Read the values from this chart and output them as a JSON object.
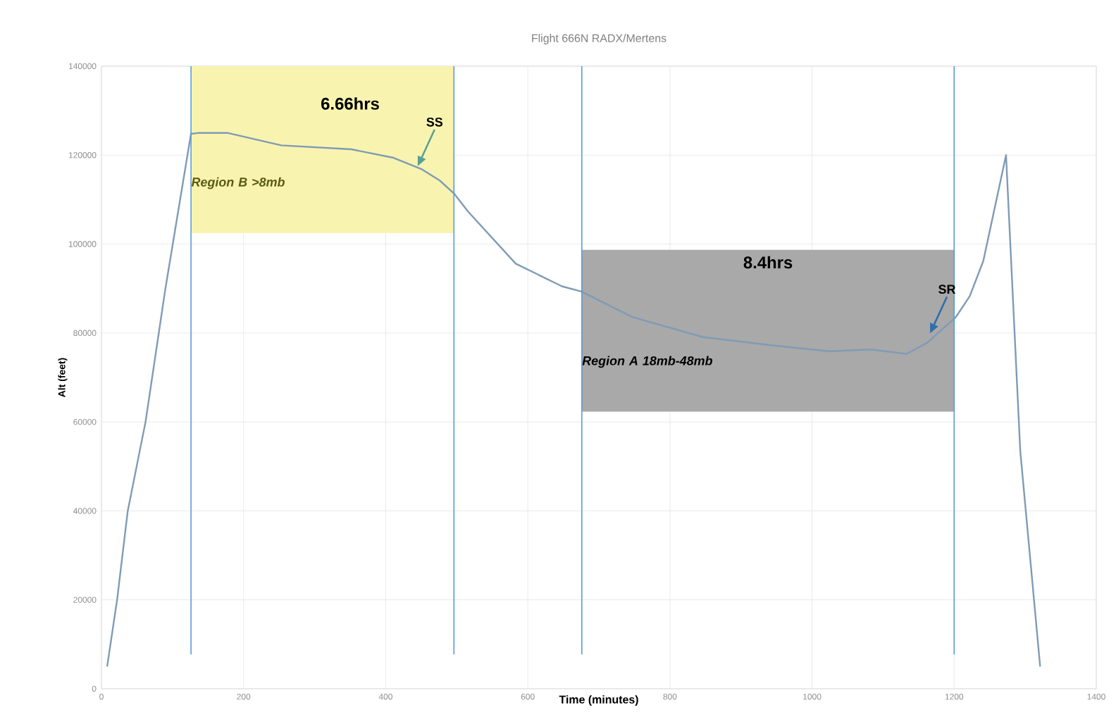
{
  "chart_data": {
    "type": "line",
    "title": "Flight 666N RADX/Mertens",
    "xlabel": "Time (minutes)",
    "ylabel": "Alt (feet)",
    "x": [
      8,
      22,
      37,
      62,
      90,
      126,
      138,
      177,
      253,
      352,
      411,
      451,
      476,
      496,
      516,
      583,
      648,
      676,
      747,
      846,
      945,
      1024,
      1083,
      1133,
      1162,
      1202,
      1222,
      1241,
      1273,
      1293,
      1321
    ],
    "series": [
      {
        "color": "#7f9bb5",
        "values": [
          5000,
          20000,
          40000,
          60000,
          90000,
          124800,
          125000,
          125000,
          122200,
          121300,
          119400,
          116800,
          114300,
          111400,
          107300,
          95600,
          90500,
          89300,
          83600,
          79100,
          77200,
          75900,
          76300,
          75300,
          77800,
          83500,
          88300,
          96200,
          120000,
          53500,
          5000
        ]
      }
    ],
    "xlim": [
      0,
      1400
    ],
    "xticks": [
      0,
      200,
      400,
      600,
      800,
      1000,
      1200,
      1400
    ],
    "ylim": [
      0,
      140000
    ],
    "yticks": [
      0,
      20000,
      40000,
      60000,
      80000,
      100000,
      120000,
      140000
    ],
    "grid": true,
    "ref_lines": [
      {
        "axis": "x",
        "value": 126,
        "color": "#5b9bd5"
      },
      {
        "axis": "x",
        "value": 496,
        "color": "#5b9bd5"
      },
      {
        "axis": "x",
        "value": 676,
        "color": "#5b9bd5"
      },
      {
        "axis": "x",
        "value": 1200,
        "color": "#5b9bd5"
      }
    ],
    "bands": [
      {
        "axis": "x",
        "from": 126,
        "to": 496,
        "label": "Region B >8mb",
        "color": "#f8f4b0"
      },
      {
        "axis": "x",
        "from": 676,
        "to": 1200,
        "label": "Region A 18mb-48mb",
        "color": "#a9a9a9"
      }
    ],
    "annotations": [
      "6.66hrs",
      "8.4hrs",
      {
        "text": "SS",
        "x": 445,
        "y": 117500
      },
      {
        "text": "SR",
        "x": 1166,
        "y": 79900
      }
    ]
  }
}
